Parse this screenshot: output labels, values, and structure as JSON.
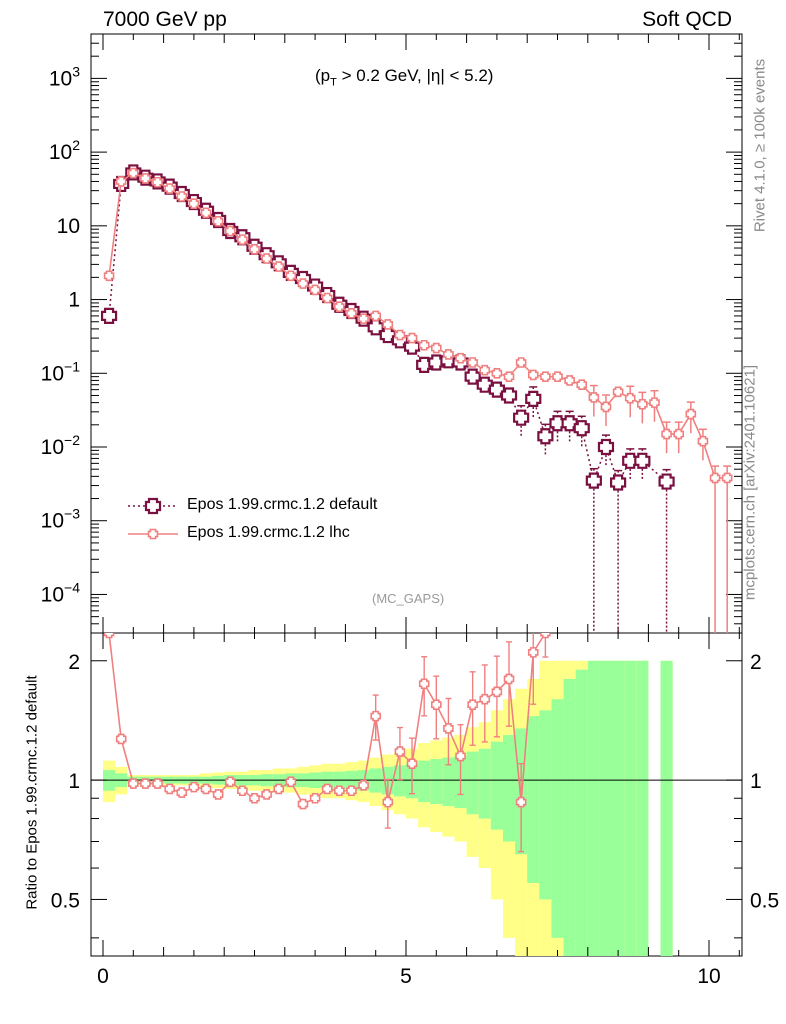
{
  "header": {
    "left": "7000 GeV pp",
    "right": "Soft QCD"
  },
  "side_labels": {
    "rivet": "Rivet 4.1.0, ≥ 100k events",
    "mcplots": "mcplots.cern.ch [arXiv:2401.10621]"
  },
  "cut": {
    "prefix": "(p",
    "sub": "T",
    "suffix": " > 0.2 GeV, |η| < 5.2)"
  },
  "watermark": "(MC_GAPS)",
  "colors": {
    "default": "#7a1040",
    "lhc": "#f08080",
    "band_inner": "#99ff99",
    "band_outer": "#ffff88"
  },
  "chart_data": [
    {
      "type": "line",
      "panel": "main",
      "yscale": "log",
      "ylim": [
        3e-05,
        4000
      ],
      "xlim": [
        -0.3,
        10.6
      ],
      "y_ticks": [
        {
          "v": 1000,
          "base": "10",
          "exp": "3"
        },
        {
          "v": 100,
          "base": "10",
          "exp": "2"
        },
        {
          "v": 10,
          "base": "10",
          "exp": ""
        },
        {
          "v": 1,
          "base": "1",
          "exp": ""
        },
        {
          "v": 0.1,
          "base": "10",
          "exp": "−1"
        },
        {
          "v": 0.01,
          "base": "10",
          "exp": "−2"
        },
        {
          "v": 0.001,
          "base": "10",
          "exp": "−3"
        },
        {
          "v": 0.0001,
          "base": "10",
          "exp": "−4"
        }
      ],
      "legend": [
        "Epos 1.99.crmc.1.2 default",
        "Epos 1.99.crmc.1.2 lhc"
      ],
      "series": [
        {
          "name": "Epos 1.99.crmc.1.2 default",
          "style": "dotted",
          "x": [
            0.1,
            0.3,
            0.5,
            0.7,
            0.9,
            1.1,
            1.3,
            1.5,
            1.7,
            1.9,
            2.1,
            2.3,
            2.5,
            2.7,
            2.9,
            3.1,
            3.3,
            3.5,
            3.7,
            3.9,
            4.1,
            4.3,
            4.5,
            4.7,
            4.9,
            5.1,
            5.3,
            5.5,
            5.7,
            5.9,
            6.1,
            6.3,
            6.5,
            6.7,
            6.9,
            7.1,
            7.3,
            7.5,
            7.7,
            7.9,
            8.1,
            8.3,
            8.5,
            8.7,
            8.9,
            9.3
          ],
          "y": [
            0.6,
            37,
            53,
            45,
            40,
            34,
            27,
            21,
            16,
            12,
            8.5,
            7,
            5.2,
            4,
            3.1,
            2.3,
            1.9,
            1.5,
            1.15,
            0.85,
            0.7,
            0.55,
            0.42,
            0.33,
            0.28,
            0.23,
            0.13,
            0.14,
            0.15,
            0.14,
            0.09,
            0.07,
            0.06,
            0.05,
            0.025,
            0.045,
            0.014,
            0.021,
            0.021,
            0.018,
            0.0035,
            0.01,
            0.0033,
            0.0065,
            0.0065,
            0.0034
          ]
        },
        {
          "name": "Epos 1.99.crmc.1.2 lhc",
          "style": "solid",
          "x": [
            0.1,
            0.3,
            0.5,
            0.7,
            0.9,
            1.1,
            1.3,
            1.5,
            1.7,
            1.9,
            2.1,
            2.3,
            2.5,
            2.7,
            2.9,
            3.1,
            3.3,
            3.5,
            3.7,
            3.9,
            4.1,
            4.3,
            4.5,
            4.7,
            4.9,
            5.1,
            5.3,
            5.5,
            5.7,
            5.9,
            6.1,
            6.3,
            6.5,
            6.7,
            6.9,
            7.1,
            7.3,
            7.5,
            7.7,
            7.9,
            8.1,
            8.3,
            8.5,
            8.7,
            8.9,
            9.1,
            9.3,
            9.5,
            9.7,
            9.9,
            10.1,
            10.3
          ],
          "y": [
            2.1,
            40,
            52,
            44,
            39,
            32,
            25,
            20,
            15,
            11.5,
            8.5,
            6.5,
            4.8,
            3.6,
            2.8,
            2.1,
            1.65,
            1.35,
            1.05,
            0.8,
            0.65,
            0.55,
            0.6,
            0.46,
            0.33,
            0.3,
            0.24,
            0.22,
            0.18,
            0.16,
            0.14,
            0.11,
            0.1,
            0.09,
            0.14,
            0.095,
            0.09,
            0.09,
            0.08,
            0.07,
            0.047,
            0.035,
            0.056,
            0.046,
            0.038,
            0.04,
            0.015,
            0.015,
            0.028,
            0.012,
            0.0038,
            0.0038
          ]
        }
      ]
    },
    {
      "type": "line",
      "panel": "ratio",
      "yscale": "log",
      "ylim": [
        0.36,
        2.35
      ],
      "ylabel": "Ratio to Epos 1.99.crmc.1.2 default",
      "x_ticks": [
        "0",
        "5",
        "10"
      ],
      "y_ticks": [
        "0.5",
        "1",
        "2"
      ],
      "reference_line": 1,
      "band_x": [
        0.1,
        0.3,
        0.5,
        0.7,
        0.9,
        1.1,
        1.3,
        1.5,
        1.7,
        1.9,
        2.1,
        2.3,
        2.5,
        2.7,
        2.9,
        3.1,
        3.3,
        3.5,
        3.7,
        3.9,
        4.1,
        4.3,
        4.5,
        4.7,
        4.9,
        5.1,
        5.3,
        5.5,
        5.7,
        5.9,
        6.1,
        6.3,
        6.5,
        6.7,
        6.9,
        7.1,
        7.3,
        7.5,
        7.7,
        7.9,
        8.1,
        8.3,
        8.5,
        8.7,
        8.9,
        9.1,
        9.3,
        9.5
      ],
      "band_inner": [
        0.06,
        0.04,
        0.02,
        0.02,
        0.02,
        0.02,
        0.02,
        0.02,
        0.02,
        0.025,
        0.03,
        0.03,
        0.03,
        0.035,
        0.035,
        0.04,
        0.04,
        0.045,
        0.05,
        0.05,
        0.055,
        0.06,
        0.07,
        0.08,
        0.09,
        0.1,
        0.12,
        0.13,
        0.14,
        0.15,
        0.18,
        0.2,
        0.25,
        0.3,
        0.35,
        0.45,
        0.5,
        0.6,
        0.8,
        0.9,
        1.0,
        1.0,
        1.0,
        1.0,
        1.0,
        0,
        1.0,
        0
      ],
      "band_outer": [
        0.12,
        0.08,
        0.03,
        0.03,
        0.03,
        0.03,
        0.03,
        0.03,
        0.04,
        0.045,
        0.05,
        0.05,
        0.06,
        0.06,
        0.07,
        0.07,
        0.08,
        0.09,
        0.1,
        0.1,
        0.11,
        0.12,
        0.14,
        0.16,
        0.18,
        0.2,
        0.24,
        0.26,
        0.28,
        0.3,
        0.36,
        0.4,
        0.5,
        0.6,
        0.7,
        0.8,
        1.0,
        1.0,
        1.0,
        1.0,
        1.0,
        1.0,
        1.0,
        1.0,
        1.0,
        0,
        1.0,
        0
      ],
      "series": [
        {
          "name": "Epos 1.99.crmc.1.2 lhc",
          "x": [
            0.1,
            0.3,
            0.5,
            0.7,
            0.9,
            1.1,
            1.3,
            1.5,
            1.7,
            1.9,
            2.1,
            2.3,
            2.5,
            2.7,
            2.9,
            3.1,
            3.3,
            3.5,
            3.7,
            3.9,
            4.1,
            4.3,
            4.5,
            4.7,
            4.9,
            5.1,
            5.3,
            5.5,
            5.7,
            5.9,
            6.1,
            6.3,
            6.5,
            6.7,
            6.9,
            7.1,
            7.3
          ],
          "y": [
            3.5,
            1.27,
            0.98,
            0.98,
            0.98,
            0.95,
            0.93,
            0.96,
            0.95,
            0.92,
            0.99,
            0.94,
            0.9,
            0.92,
            0.95,
            0.99,
            0.87,
            0.9,
            0.95,
            0.94,
            0.94,
            0.97,
            1.45,
            0.88,
            1.18,
            1.1,
            1.75,
            1.55,
            1.35,
            1.15,
            1.55,
            1.6,
            1.67,
            1.8,
            0.88,
            2.1,
            2.8
          ]
        }
      ]
    }
  ]
}
